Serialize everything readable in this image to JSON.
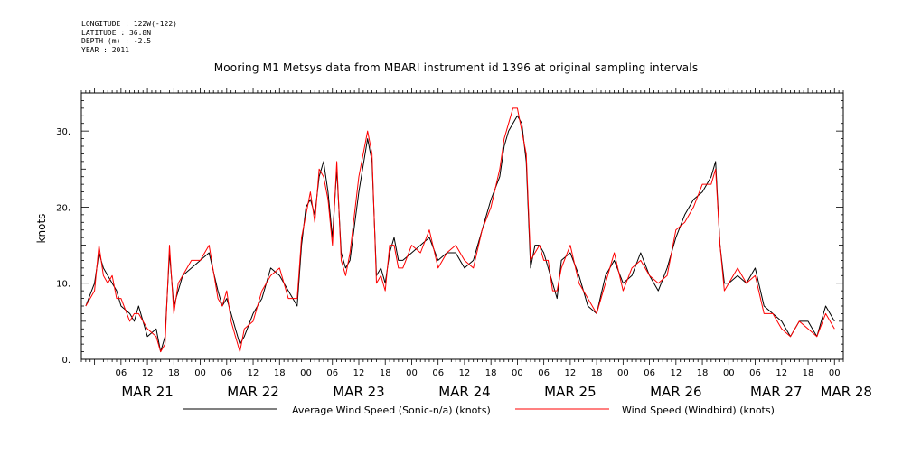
{
  "metadata": {
    "longitude": "LONGITUDE : 122W(-122)",
    "latitude": "LATITUDE : 36.8N",
    "depth": "DEPTH (m) : -2.5",
    "year": "YEAR : 2011"
  },
  "chart_data": {
    "type": "line",
    "title": "Mooring M1 Metsys data from MBARI instrument id 1396 at original sampling intervals",
    "ylabel": "knots",
    "ylim": [
      0,
      35
    ],
    "y_ticks": [
      "0.",
      "10.",
      "20.",
      "30."
    ],
    "x_hour_ticks": [
      "06",
      "12",
      "18",
      "00",
      "06",
      "12",
      "18",
      "00",
      "06",
      "12",
      "18",
      "00",
      "06",
      "12",
      "18",
      "00",
      "06",
      "12",
      "18",
      "00",
      "06",
      "12",
      "18",
      "00",
      "06",
      "12",
      "18",
      "00",
      "06",
      "12",
      "18",
      "00"
    ],
    "x_day_labels": [
      "MAR 21",
      "MAR 22",
      "MAR 23",
      "MAR 24",
      "MAR 25",
      "MAR 26",
      "MAR 27",
      "MAR 28"
    ],
    "x_units": "hours since MAR 21 00:00",
    "xlim": [
      -3,
      170
    ],
    "grid": false,
    "legend_position": "bottom",
    "series": [
      {
        "name": "Average Wind Speed (Sonic-n/a) (knots)",
        "color": "#000000",
        "x": [
          -2,
          0,
          1,
          2,
          3,
          4,
          5,
          6,
          8,
          9,
          10,
          12,
          14,
          15,
          16,
          17,
          18,
          19,
          20,
          22,
          24,
          26,
          28,
          29,
          30,
          31,
          32,
          33,
          34,
          36,
          38,
          40,
          42,
          44,
          46,
          47,
          48,
          49,
          50,
          51,
          52,
          53,
          54,
          55,
          56,
          57,
          58,
          60,
          62,
          63,
          64,
          65,
          66,
          67,
          68,
          69,
          70,
          72,
          74,
          76,
          78,
          80,
          82,
          84,
          86,
          88,
          90,
          92,
          93,
          94,
          95,
          96,
          97,
          98,
          99,
          100,
          101,
          102,
          103,
          104,
          105,
          106,
          108,
          110,
          112,
          114,
          116,
          118,
          120,
          122,
          124,
          126,
          128,
          130,
          132,
          134,
          136,
          138,
          140,
          141,
          142,
          143,
          144,
          146,
          148,
          150,
          152,
          154,
          156,
          158,
          160,
          162,
          164,
          166,
          168
        ],
        "values": [
          7,
          10,
          14,
          12,
          11,
          10,
          9,
          7,
          6,
          5,
          7,
          3,
          4,
          1,
          3,
          14,
          7,
          9,
          11,
          12,
          13,
          14,
          9,
          7,
          8,
          6,
          4,
          2,
          3,
          6,
          8,
          12,
          11,
          9,
          7,
          15,
          20,
          21,
          19,
          24,
          26,
          22,
          16,
          25,
          14,
          12,
          13,
          22,
          29,
          26,
          11,
          12,
          10,
          14,
          16,
          13,
          13,
          14,
          15,
          16,
          13,
          14,
          14,
          12,
          13,
          17,
          21,
          24,
          28,
          30,
          31,
          32,
          31,
          26,
          12,
          15,
          15,
          14,
          12,
          10,
          8,
          13,
          14,
          11,
          7,
          6,
          11,
          13,
          10,
          11,
          14,
          11,
          9,
          12,
          16,
          19,
          21,
          22,
          24,
          26,
          15,
          10,
          10,
          11,
          10,
          12,
          7,
          6,
          5,
          3,
          5,
          5,
          3,
          7,
          5
        ],
        "x_labels": []
      },
      {
        "name": "Wind Speed (Windbird) (knots)",
        "color": "#ff0000",
        "x": [
          -2,
          0,
          1,
          2,
          3,
          4,
          5,
          6,
          8,
          9,
          10,
          12,
          14,
          15,
          16,
          17,
          18,
          19,
          20,
          22,
          24,
          26,
          28,
          29,
          30,
          31,
          32,
          33,
          34,
          36,
          38,
          40,
          42,
          44,
          46,
          47,
          48,
          49,
          50,
          51,
          52,
          53,
          54,
          55,
          56,
          57,
          58,
          60,
          62,
          63,
          64,
          65,
          66,
          67,
          68,
          69,
          70,
          72,
          74,
          76,
          78,
          80,
          82,
          84,
          86,
          88,
          90,
          92,
          93,
          94,
          95,
          96,
          97,
          98,
          99,
          100,
          101,
          102,
          103,
          104,
          105,
          106,
          108,
          110,
          112,
          114,
          116,
          118,
          120,
          122,
          124,
          126,
          128,
          130,
          132,
          134,
          136,
          138,
          140,
          141,
          142,
          143,
          144,
          146,
          148,
          150,
          152,
          154,
          156,
          158,
          160,
          162,
          164,
          166,
          168
        ],
        "values": [
          7,
          9,
          15,
          11,
          10,
          11,
          8,
          8,
          5,
          6,
          6,
          4,
          3,
          1,
          2,
          15,
          6,
          10,
          11,
          13,
          13,
          15,
          8,
          7,
          9,
          5,
          3,
          1,
          4,
          5,
          9,
          11,
          12,
          8,
          8,
          16,
          19,
          22,
          18,
          25,
          24,
          21,
          15,
          26,
          13,
          11,
          14,
          24,
          30,
          27,
          10,
          11,
          9,
          15,
          15,
          12,
          12,
          15,
          14,
          17,
          12,
          14,
          15,
          13,
          12,
          17,
          20,
          25,
          29,
          31,
          33,
          33,
          30,
          27,
          13,
          14,
          15,
          13,
          13,
          9,
          9,
          12,
          15,
          10,
          8,
          6,
          10,
          14,
          9,
          12,
          13,
          11,
          10,
          11,
          17,
          18,
          20,
          23,
          23,
          25,
          15,
          9,
          10,
          12,
          10,
          11,
          6,
          6,
          4,
          3,
          5,
          4,
          3,
          6,
          4
        ]
      }
    ]
  }
}
